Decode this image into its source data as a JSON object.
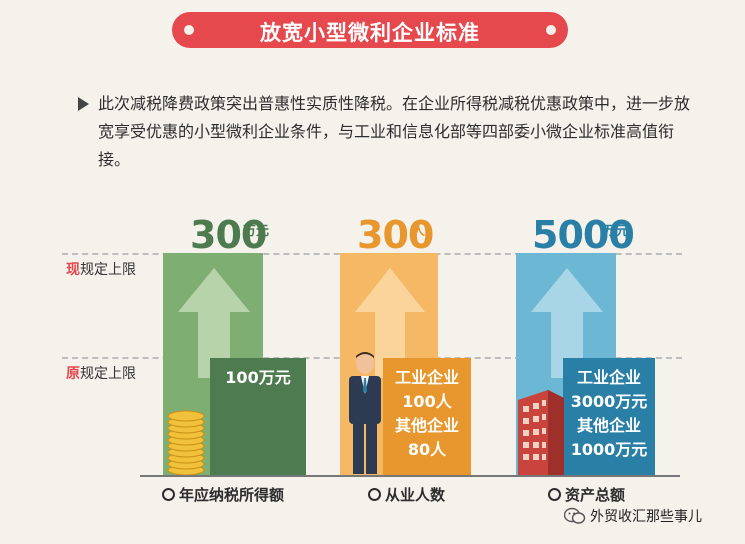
{
  "header": {
    "title": "放宽小型微利企业标准"
  },
  "intro": {
    "text": "此次减税降费政策突出普惠性实质性降税。在企业所得税减税优惠政策中，进一步放宽享受优惠的小型微利企业条件，与工业和信息化部等四部委小微企业标准高值衔接。"
  },
  "limits": {
    "current": {
      "prefix": "现",
      "label": "规定上限"
    },
    "previous": {
      "prefix": "原",
      "label": "规定上限"
    }
  },
  "columns": [
    {
      "value": "300",
      "unit": "万元",
      "old": [
        "100万元"
      ],
      "category": "年应纳税所得额",
      "color": "#76a96d",
      "dark": "#4d7a4e"
    },
    {
      "value": "300",
      "unit": "人",
      "old": [
        "工业企业",
        "100人",
        "其他企业",
        "80人"
      ],
      "category": "从业人数",
      "color": "#f2b04f",
      "dark": "#e8962e"
    },
    {
      "value": "5000",
      "unit": "万元",
      "old": [
        "工业企业",
        "3000万元",
        "其他企业",
        "1000万元"
      ],
      "category": "资产总额",
      "color": "#5fb0cf",
      "dark": "#2a7fa6"
    }
  ],
  "footer": {
    "text": "外贸收汇那些事儿"
  }
}
